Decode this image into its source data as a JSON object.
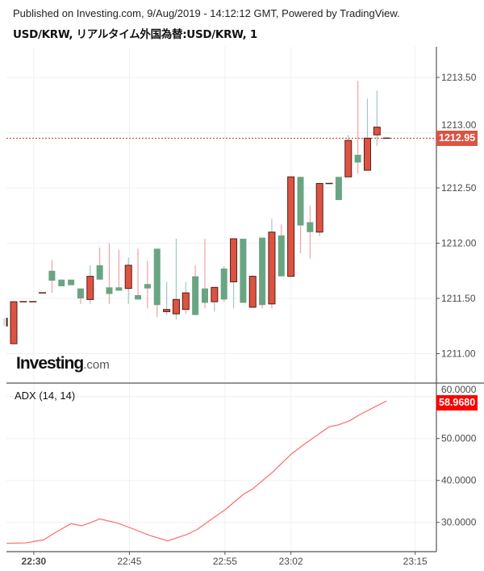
{
  "header": {
    "published": "Published on Investing.com, 9/Aug/2019 - 14:12:12 GMT, Powered by TradingView.",
    "title": "USD/KRW, リアルタイム外国為替:USD/KRW, 1"
  },
  "logo": {
    "brand": "Investing",
    "suffix": ".com"
  },
  "colors": {
    "up_body": "#db5443",
    "up_border": "#5b1a14",
    "down_body": "#6aa583",
    "up_wick": "#9fc8c8",
    "down_wick": "#f4a0a8",
    "adx_line": "#ff6b6b",
    "price_badge": "#db5443",
    "adx_badge": "#ff0000"
  },
  "chart_data": [
    {
      "type": "candlestick",
      "title": "USD/KRW, 1",
      "current_price": 1212.95,
      "current_price_label": "1212.95",
      "ylim": [
        1210.75,
        1213.8
      ],
      "y_ticks": [
        "1213.50",
        "1213.00",
        "1212.50",
        "1212.00",
        "1211.50",
        "1211.00"
      ],
      "x_ticks": [
        {
          "label": "22:30",
          "bar": 3.1,
          "bold": true
        },
        {
          "label": "22:45",
          "bar": 13.1,
          "bold": false
        },
        {
          "label": "22:55",
          "bar": 23.1,
          "bold": false
        },
        {
          "label": "23:02",
          "bar": 30.0,
          "bold": false
        },
        {
          "label": "23:15",
          "bar": 43.0,
          "bold": false
        }
      ],
      "candles_ohlc": [
        [
          1211.25,
          1211.32,
          1211.25,
          1211.32
        ],
        [
          1211.09,
          1211.47,
          1211.09,
          1211.47
        ],
        [
          1211.47,
          1211.47,
          1211.47,
          1211.47
        ],
        [
          1211.47,
          1211.47,
          1211.47,
          1211.47
        ],
        [
          1211.55,
          1211.55,
          1211.55,
          1211.55
        ],
        [
          1211.75,
          1211.85,
          1211.55,
          1211.66
        ],
        [
          1211.67,
          1211.67,
          1211.61,
          1211.61
        ],
        [
          1211.67,
          1211.67,
          1211.62,
          1211.62
        ],
        [
          1211.59,
          1211.59,
          1211.45,
          1211.5
        ],
        [
          1211.49,
          1211.8,
          1211.45,
          1211.7
        ],
        [
          1211.8,
          1211.96,
          1211.67,
          1211.67
        ],
        [
          1211.6,
          1212.0,
          1211.45,
          1211.54
        ],
        [
          1211.6,
          1211.94,
          1211.57,
          1211.57
        ],
        [
          1211.59,
          1211.87,
          1211.45,
          1211.8
        ],
        [
          1211.53,
          1211.95,
          1211.49,
          1211.49
        ],
        [
          1211.63,
          1211.84,
          1211.41,
          1211.59
        ],
        [
          1211.95,
          1211.95,
          1211.33,
          1211.44
        ],
        [
          1211.38,
          1211.65,
          1211.35,
          1211.4
        ],
        [
          1211.36,
          1212.04,
          1211.31,
          1211.49
        ],
        [
          1211.4,
          1211.65,
          1211.36,
          1211.55
        ],
        [
          1211.7,
          1211.8,
          1211.35,
          1211.35
        ],
        [
          1211.59,
          1212.04,
          1211.41,
          1211.46
        ],
        [
          1211.47,
          1211.6,
          1211.38,
          1211.6
        ],
        [
          1211.77,
          1211.79,
          1211.47,
          1211.49
        ],
        [
          1211.65,
          1212.04,
          1211.41,
          1212.04
        ],
        [
          1212.04,
          1212.04,
          1211.46,
          1211.46
        ],
        [
          1211.42,
          1211.71,
          1211.42,
          1211.7
        ],
        [
          1212.05,
          1212.05,
          1211.41,
          1211.44
        ],
        [
          1211.45,
          1212.22,
          1211.41,
          1212.1
        ],
        [
          1212.07,
          1212.17,
          1211.7,
          1211.7
        ],
        [
          1211.7,
          1212.6,
          1211.7,
          1212.6
        ],
        [
          1212.6,
          1212.6,
          1211.91,
          1212.16
        ],
        [
          1212.19,
          1212.34,
          1211.86,
          1212.1
        ],
        [
          1212.1,
          1212.54,
          1212.06,
          1212.54
        ],
        [
          1212.54,
          1212.54,
          1212.54,
          1212.54
        ],
        [
          1212.6,
          1212.6,
          1212.39,
          1212.39
        ],
        [
          1212.6,
          1212.98,
          1212.6,
          1212.93
        ],
        [
          1212.8,
          1213.47,
          1212.63,
          1212.73
        ],
        [
          1212.66,
          1213.31,
          1212.66,
          1212.95
        ],
        [
          1212.98,
          1213.38,
          1212.88,
          1213.05
        ],
        [
          1212.95,
          1212.95,
          1212.95,
          1212.95
        ]
      ]
    },
    {
      "type": "line",
      "title": "ADX (14, 14)",
      "current_value_label": "58.9680",
      "ylim": [
        23,
        61.5
      ],
      "y_ticks": [
        "60.0000",
        "50.0000",
        "40.0000",
        "30.0000"
      ],
      "points_bar_value": [
        [
          0.25,
          25.0
        ],
        [
          2.2,
          25.1
        ],
        [
          4.1,
          25.8
        ],
        [
          5.6,
          27.9
        ],
        [
          7.0,
          29.7
        ],
        [
          8.1,
          29.2
        ],
        [
          8.9,
          29.8
        ],
        [
          10.0,
          30.8
        ],
        [
          11.9,
          29.8
        ],
        [
          13.2,
          28.7
        ],
        [
          15.2,
          26.9
        ],
        [
          17.1,
          25.6
        ],
        [
          19.1,
          27.1
        ],
        [
          20.2,
          28.3
        ],
        [
          21.9,
          31.1
        ],
        [
          23.1,
          33.0
        ],
        [
          25.1,
          36.8
        ],
        [
          26.0,
          38.0
        ],
        [
          28.1,
          42.0
        ],
        [
          30.0,
          46.2
        ],
        [
          31.2,
          48.3
        ],
        [
          34.0,
          52.8
        ],
        [
          34.9,
          53.2
        ],
        [
          36.1,
          54.2
        ],
        [
          37.2,
          55.7
        ],
        [
          40.0,
          58.968
        ]
      ]
    }
  ]
}
